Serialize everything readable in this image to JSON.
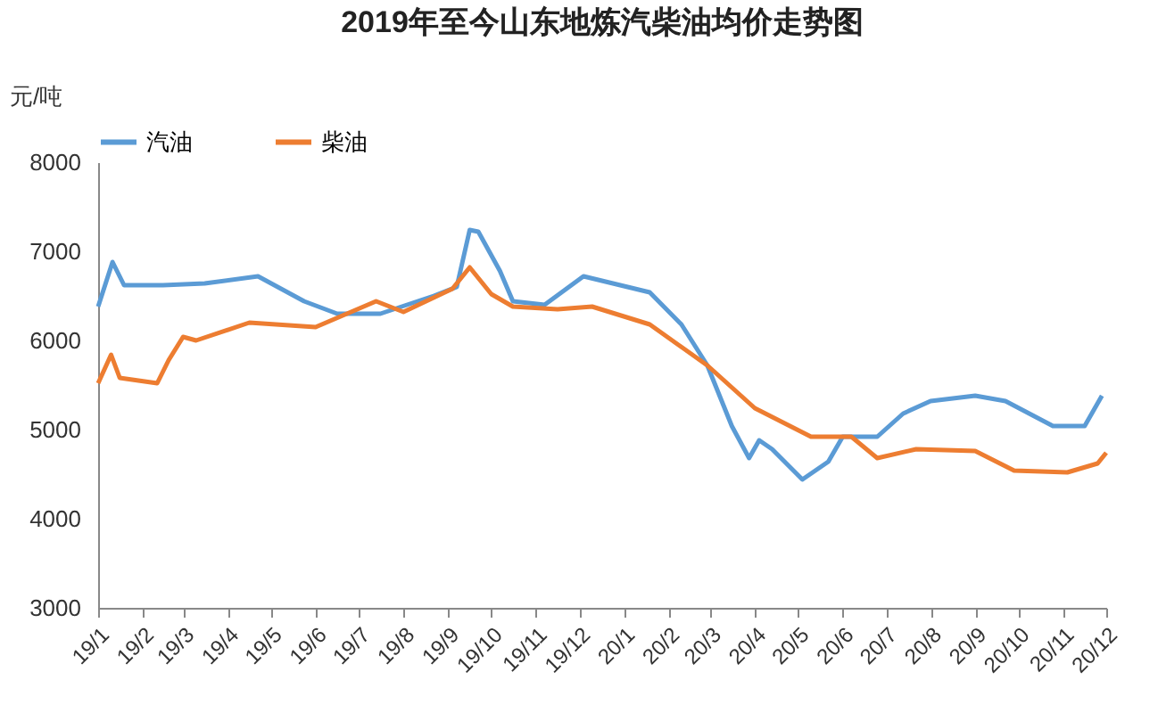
{
  "chart_data": {
    "type": "line",
    "title": "2019年至今山东地炼汽柴油均价走势图",
    "ylabel": "元/吨",
    "xlim": [
      "2019-01",
      "2020-12"
    ],
    "xticks": [
      {
        "value": "2019-01",
        "label": "19/1"
      },
      {
        "value": "2019-02",
        "label": "19/2"
      },
      {
        "value": "2019-03",
        "label": "19/3"
      },
      {
        "value": "2019-04",
        "label": "19/4"
      },
      {
        "value": "2019-05",
        "label": "19/5"
      },
      {
        "value": "2019-06",
        "label": "19/6"
      },
      {
        "value": "2019-07",
        "label": "19/7"
      },
      {
        "value": "2019-08",
        "label": "19/8"
      },
      {
        "value": "2019-09",
        "label": "19/9"
      },
      {
        "value": "2019-10",
        "label": "19/10"
      },
      {
        "value": "2019-11",
        "label": "19/11"
      },
      {
        "value": "2019-12",
        "label": "19/12"
      },
      {
        "value": "2020-01",
        "label": "20/1"
      },
      {
        "value": "2020-02",
        "label": "20/2"
      },
      {
        "value": "2020-03",
        "label": "20/3"
      },
      {
        "value": "2020-04",
        "label": "20/4"
      },
      {
        "value": "2020-05",
        "label": "20/5"
      },
      {
        "value": "2020-06",
        "label": "20/6"
      },
      {
        "value": "2020-07",
        "label": "20/7"
      },
      {
        "value": "2020-08",
        "label": "20/8"
      },
      {
        "value": "2020-09",
        "label": "20/9"
      },
      {
        "value": "2020-10",
        "label": "20/10"
      },
      {
        "value": "2020-11",
        "label": "20/11"
      },
      {
        "value": "2020-12",
        "label": "20/12"
      }
    ],
    "ylim": [
      3000,
      8000
    ],
    "yticks": [
      3000,
      4000,
      5000,
      6000,
      7000,
      8000
    ],
    "legend": "top",
    "grid": false,
    "series": [
      {
        "name": "汽油",
        "color": "#5b9bd5",
        "x": [
          "2019-01-01",
          "2019-01-11",
          "2019-01-19",
          "2019-02-15",
          "2019-03-16",
          "2019-04-22",
          "2019-05-24",
          "2019-06-16",
          "2019-07-16",
          "2019-08-22",
          "2019-09-07",
          "2019-09-16",
          "2019-09-22",
          "2019-10-07",
          "2019-10-16",
          "2019-11-07",
          "2019-12-04",
          "2020-01-19",
          "2020-02-10",
          "2020-02-28",
          "2020-03-16",
          "2020-03-28",
          "2020-04-04",
          "2020-04-13",
          "2020-05-04",
          "2020-05-22",
          "2020-06-01",
          "2020-06-25",
          "2020-07-13",
          "2020-08-01",
          "2020-09-01",
          "2020-09-22",
          "2020-10-25",
          "2020-11-16",
          "2020-11-28"
        ],
        "values": [
          6380,
          6880,
          6620,
          6620,
          6640,
          6720,
          6440,
          6300,
          6300,
          6500,
          6600,
          7240,
          7220,
          6780,
          6440,
          6400,
          6720,
          6540,
          6180,
          5720,
          5040,
          4680,
          4880,
          4780,
          4440,
          4640,
          4920,
          4920,
          5180,
          5320,
          5380,
          5320,
          5040,
          5040,
          5380
        ]
      },
      {
        "name": "柴油",
        "color": "#ed7d31",
        "x": [
          "2019-01-01",
          "2019-01-10",
          "2019-01-16",
          "2019-02-11",
          "2019-02-19",
          "2019-03-01",
          "2019-03-10",
          "2019-04-16",
          "2019-06-01",
          "2019-07-13",
          "2019-08-01",
          "2019-09-04",
          "2019-09-16",
          "2019-10-01",
          "2019-10-16",
          "2019-11-16",
          "2019-12-10",
          "2020-01-19",
          "2020-02-28",
          "2020-04-01",
          "2020-05-10",
          "2020-06-07",
          "2020-06-25",
          "2020-07-22",
          "2020-09-01",
          "2020-09-28",
          "2020-11-04",
          "2020-11-25",
          "2020-12-01"
        ],
        "values": [
          5520,
          5840,
          5580,
          5520,
          5780,
          6040,
          6000,
          6200,
          6150,
          6440,
          6320,
          6580,
          6820,
          6520,
          6380,
          6350,
          6380,
          6180,
          5720,
          5240,
          4920,
          4920,
          4680,
          4780,
          4760,
          4540,
          4520,
          4620,
          4740
        ]
      }
    ]
  }
}
